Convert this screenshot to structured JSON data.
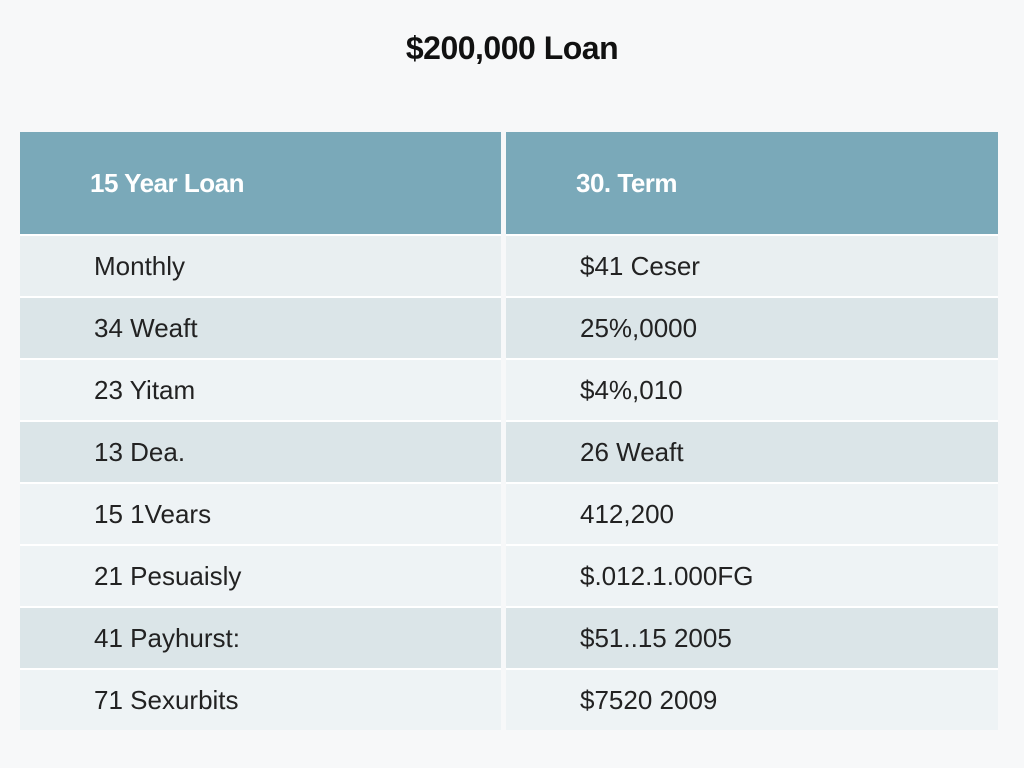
{
  "title": "$200,000 Loan",
  "table": {
    "headers": [
      "15 Year Loan",
      "30. Term"
    ],
    "rows": [
      [
        "Monthly",
        "$41 Ceser"
      ],
      [
        "34 Weaft",
        "25%,0000"
      ],
      [
        "23 Yitam",
        "$4%,010"
      ],
      [
        "13 Dea.",
        "26 Weaft"
      ],
      [
        "15 1Vears",
        "412,200"
      ],
      [
        "21 Pesuaisly",
        "$.012.1.000FG"
      ],
      [
        "41 Payhurst:",
        "$51..15 2005"
      ],
      [
        "71 Sexurbits",
        "$7520 2009"
      ]
    ]
  },
  "colors": {
    "header_bg": "#7aa9b9",
    "header_text": "#ffffff",
    "row_light": "#e9eff1",
    "row_dark": "#dbe5e8"
  }
}
